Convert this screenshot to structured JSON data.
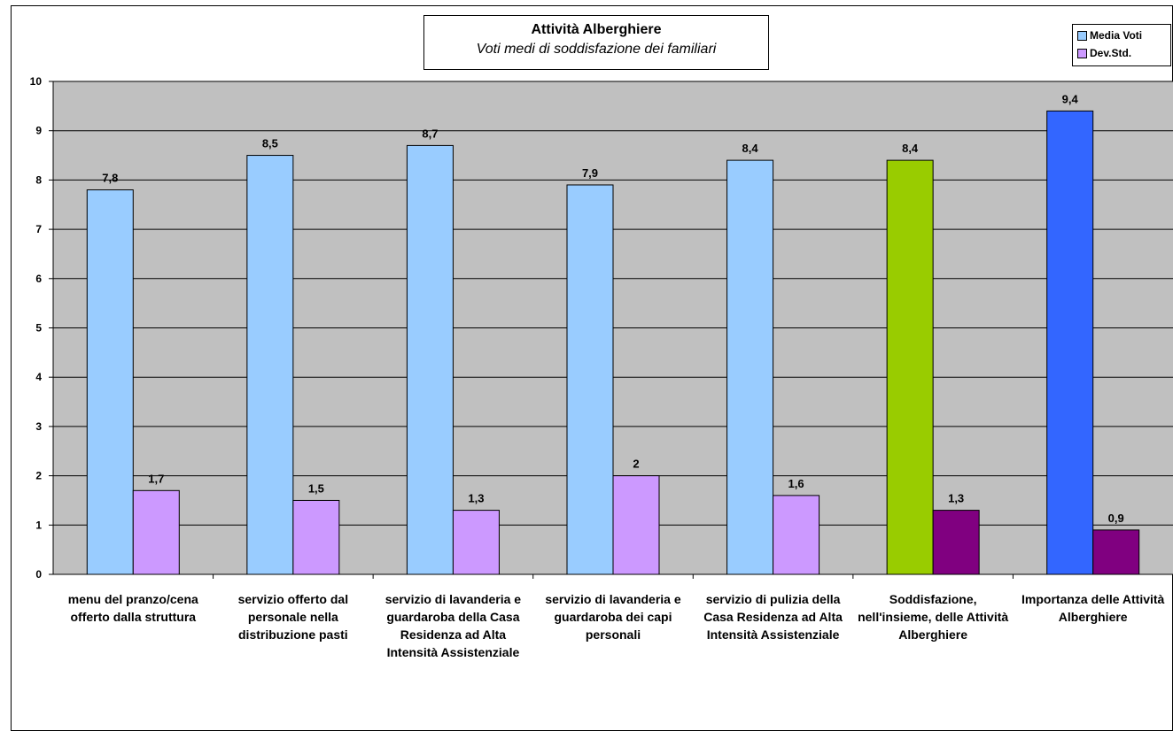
{
  "chart_data": {
    "type": "bar",
    "title": "Attività Alberghiere",
    "subtitle": "Voti medi di soddisfazione dei familiari",
    "xlabel": "",
    "ylabel": "",
    "ylim": [
      0,
      10
    ],
    "yticks": [
      "0",
      "1",
      "2",
      "3",
      "4",
      "5",
      "6",
      "7",
      "8",
      "9",
      "10"
    ],
    "grid": true,
    "legend_position": "top-right",
    "categories": [
      "menu del pranzo/cena offerto dalla struttura",
      "servizio offerto dal personale nella distribuzione pasti",
      "servizio di lavanderia e guardaroba della Casa Residenza ad Alta Intensità Assistenziale",
      "servizio di lavanderia e guardaroba dei capi personali",
      "servizio di pulizia della Casa Residenza ad Alta Intensità Assistenziale",
      "Soddisfazione, nell'insieme, delle Attività Alberghiere",
      "Importanza delle Attività Alberghiere"
    ],
    "series": [
      {
        "name": "Media Voti",
        "color": "#99ccff",
        "values": [
          7.8,
          8.5,
          8.7,
          7.9,
          8.4,
          8.4,
          9.4
        ],
        "labels": [
          "7,8",
          "8,5",
          "8,7",
          "7,9",
          "8,4",
          "8,4",
          "9,4"
        ],
        "point_colors": [
          "#99ccff",
          "#99ccff",
          "#99ccff",
          "#99ccff",
          "#99ccff",
          "#99cc00",
          "#3366ff"
        ]
      },
      {
        "name": "Dev.Std.",
        "color": "#cc99ff",
        "values": [
          1.7,
          1.5,
          1.3,
          2.0,
          1.6,
          1.3,
          0.9
        ],
        "labels": [
          "1,7",
          "1,5",
          "1,3",
          "2",
          "1,6",
          "1,3",
          "0,9"
        ],
        "point_colors": [
          "#cc99ff",
          "#cc99ff",
          "#cc99ff",
          "#cc99ff",
          "#cc99ff",
          "#800080",
          "#800080"
        ]
      }
    ],
    "plot_background": "#c0c0c0"
  }
}
